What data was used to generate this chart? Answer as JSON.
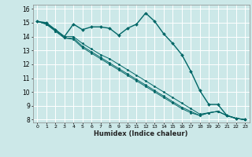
{
  "title": "",
  "xlabel": "Humidex (Indice chaleur)",
  "ylabel": "",
  "bg_color": "#cce8e8",
  "grid_color": "#ffffff",
  "line_color": "#006666",
  "xlim": [
    -0.5,
    23.5
  ],
  "ylim": [
    7.8,
    16.3
  ],
  "xticks": [
    0,
    1,
    2,
    3,
    4,
    5,
    6,
    7,
    8,
    9,
    10,
    11,
    12,
    13,
    14,
    15,
    16,
    17,
    18,
    19,
    20,
    21,
    22,
    23
  ],
  "yticks": [
    8,
    9,
    10,
    11,
    12,
    13,
    14,
    15,
    16
  ],
  "series": [
    [
      15.1,
      15.0,
      14.5,
      14.0,
      14.9,
      14.5,
      14.7,
      14.7,
      14.6,
      14.1,
      14.6,
      14.9,
      15.7,
      15.1,
      14.2,
      13.5,
      12.7,
      11.5,
      10.1,
      9.1,
      9.1,
      8.3,
      8.1,
      8.0
    ],
    [
      15.1,
      14.9,
      14.5,
      14.0,
      14.0,
      13.5,
      13.1,
      12.7,
      12.4,
      12.0,
      11.6,
      11.2,
      10.8,
      10.4,
      10.0,
      9.6,
      9.2,
      8.8,
      8.4,
      8.5,
      8.6,
      8.3,
      8.1,
      8.0
    ],
    [
      15.1,
      14.9,
      14.4,
      13.9,
      13.9,
      13.3,
      12.9,
      12.5,
      12.1,
      11.7,
      11.3,
      10.9,
      10.5,
      10.1,
      9.7,
      9.3,
      8.9,
      8.6,
      8.3,
      8.5,
      8.6,
      8.3,
      8.1,
      8.0
    ],
    [
      15.1,
      14.9,
      14.4,
      13.9,
      13.8,
      13.2,
      12.8,
      12.4,
      12.0,
      11.6,
      11.2,
      10.8,
      10.4,
      10.0,
      9.6,
      9.2,
      8.8,
      8.5,
      8.3,
      8.5,
      8.6,
      8.3,
      8.1,
      8.0
    ]
  ]
}
